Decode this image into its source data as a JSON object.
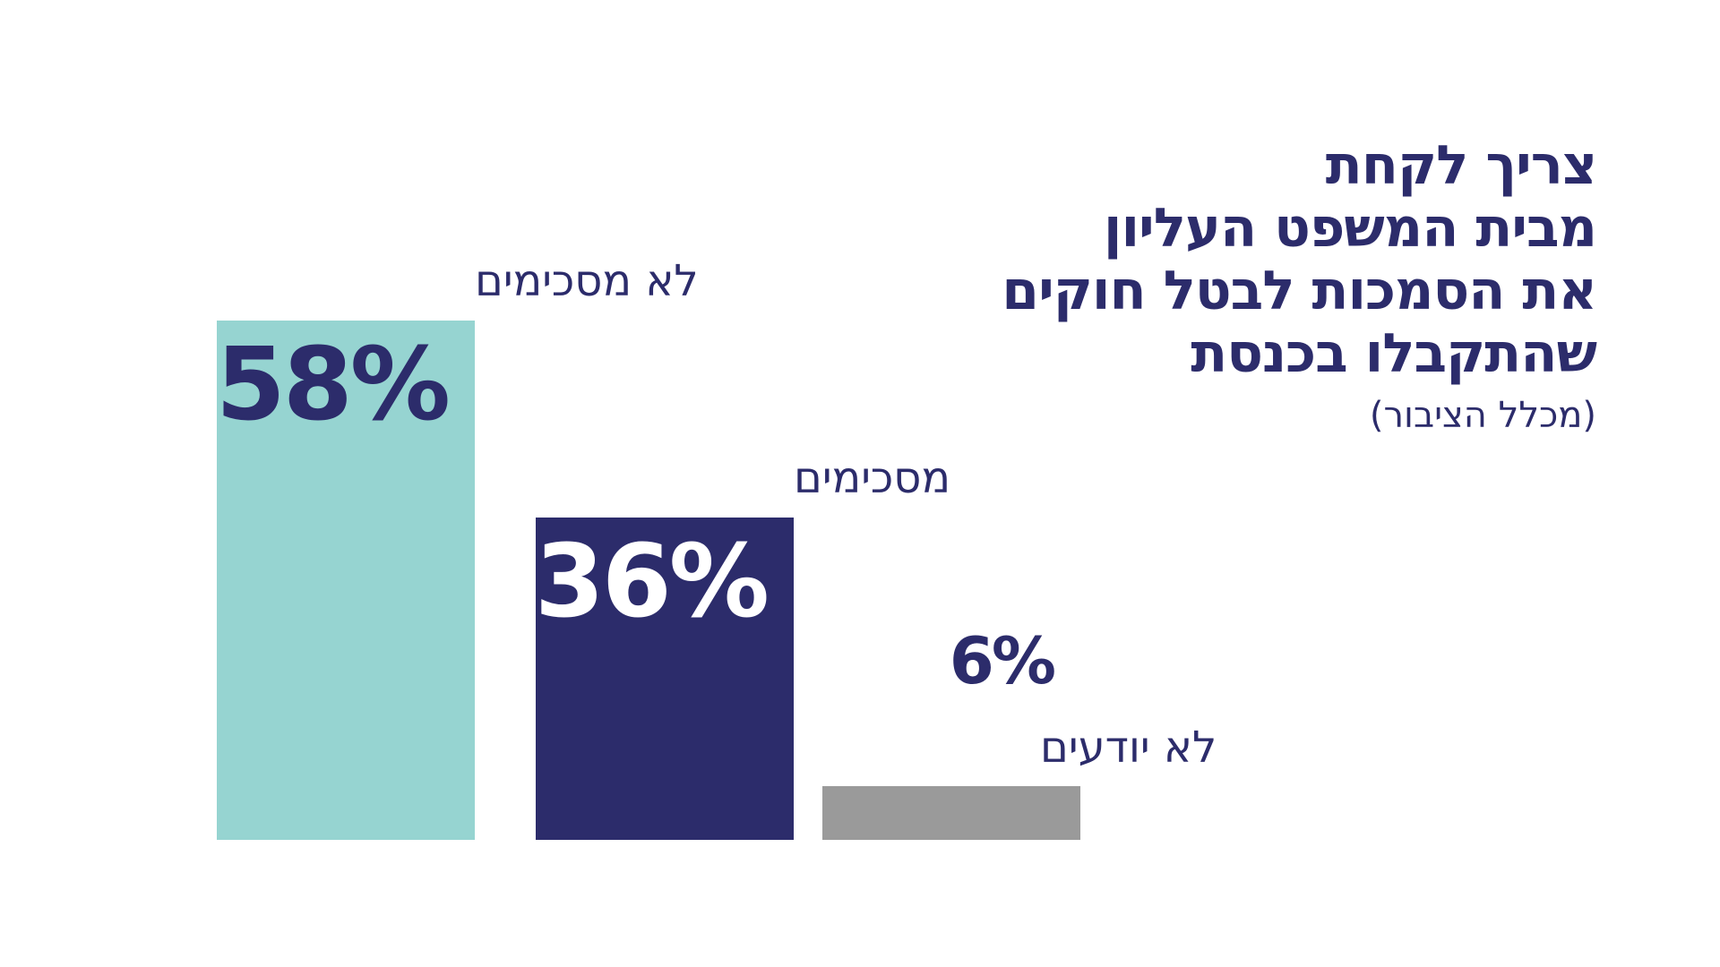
{
  "title_lines": [
    "צריך לקחת",
    "מבית המשפט העליון",
    "את הסמכות לבטל חוקים",
    "שהתקבלו בכנסת"
  ],
  "subtitle": "(מכלל הציבור)",
  "chart_data": {
    "type": "bar",
    "categories": [
      "לא מסכימים",
      "מסכימים",
      "לא יודעים"
    ],
    "values": [
      58,
      36,
      6
    ],
    "value_labels": [
      "58%",
      "36%",
      "6%"
    ],
    "ylim": [
      0,
      58
    ],
    "grid": false,
    "colors": [
      "#96d4d1",
      "#2c2c6b",
      "#9a9a9a"
    ],
    "value_label_colors": [
      "#2c2c6b",
      "#ffffff",
      "#2c2c6b"
    ],
    "label_color": "#2c2c6b"
  }
}
